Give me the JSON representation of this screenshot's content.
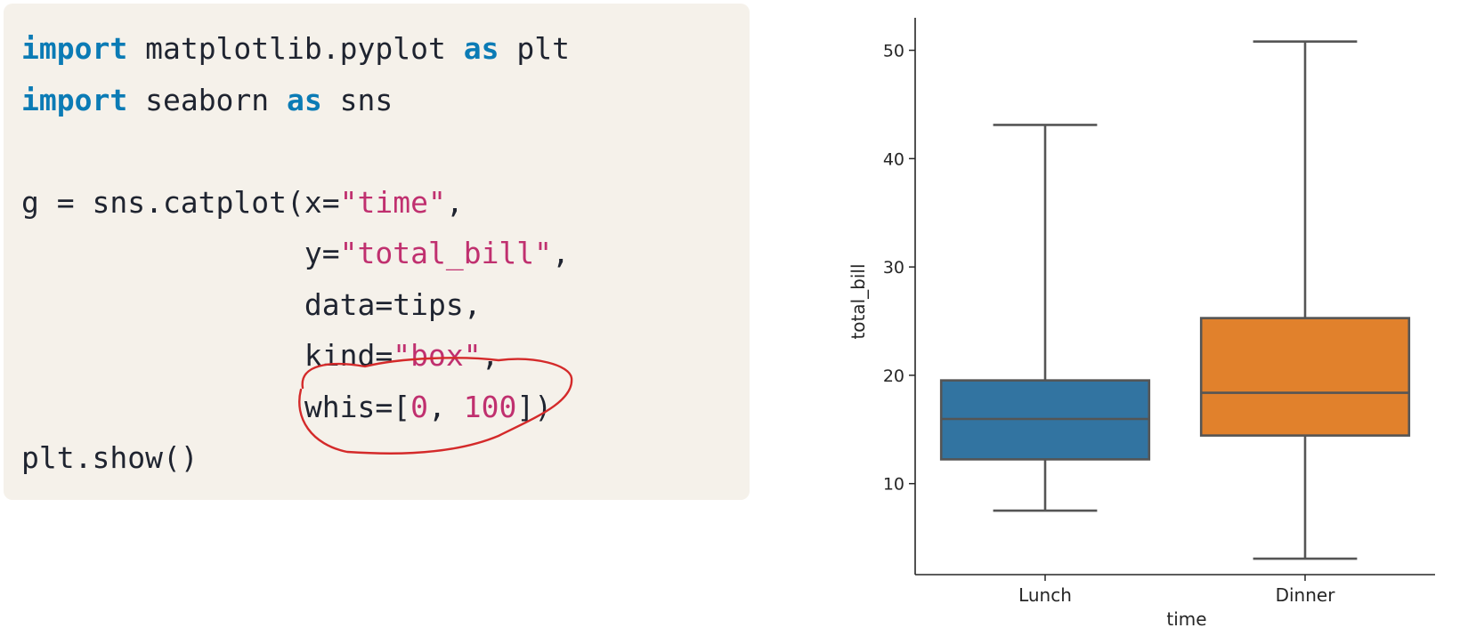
{
  "code": {
    "lines": [
      [
        {
          "t": "import",
          "c": "kw"
        },
        {
          "t": " matplotlib.pyplot "
        },
        {
          "t": "as",
          "c": "kw"
        },
        {
          "t": " plt"
        }
      ],
      [
        {
          "t": "import",
          "c": "kw"
        },
        {
          "t": " seaborn "
        },
        {
          "t": "as",
          "c": "kw"
        },
        {
          "t": " sns"
        }
      ],
      [],
      [
        {
          "t": "g = sns.catplot(x="
        },
        {
          "t": "\"time\"",
          "c": "str"
        },
        {
          "t": ","
        }
      ],
      [
        {
          "t": "                y="
        },
        {
          "t": "\"total_bill\"",
          "c": "str"
        },
        {
          "t": ","
        }
      ],
      [
        {
          "t": "                data=tips,"
        }
      ],
      [
        {
          "t": "                kind="
        },
        {
          "t": "\"box\"",
          "c": "str"
        },
        {
          "t": ","
        }
      ],
      [
        {
          "t": "                whis=["
        },
        {
          "t": "0",
          "c": "num"
        },
        {
          "t": ", "
        },
        {
          "t": "100",
          "c": "num"
        },
        {
          "t": "])"
        }
      ],
      [
        {
          "t": "plt.show()"
        }
      ]
    ]
  },
  "annotation": {
    "shape": "hand-drawn-ellipse",
    "color": "#d42a2a",
    "target": "whis=[0, 100])"
  },
  "chart_data": {
    "type": "box",
    "title": "",
    "xlabel": "time",
    "ylabel": "total_bill",
    "categories": [
      "Lunch",
      "Dinner"
    ],
    "ylim": [
      1.6,
      53.0
    ],
    "yticks": [
      10,
      20,
      30,
      40,
      50
    ],
    "grid": false,
    "boxes": [
      {
        "category": "Lunch",
        "min": 7.51,
        "q1": 12.24,
        "median": 15.97,
        "q3": 19.53,
        "max": 43.11,
        "color": "#3274a1"
      },
      {
        "category": "Dinner",
        "min": 3.07,
        "q1": 14.44,
        "median": 18.39,
        "q3": 25.28,
        "max": 50.81,
        "color": "#e1812c"
      }
    ]
  }
}
